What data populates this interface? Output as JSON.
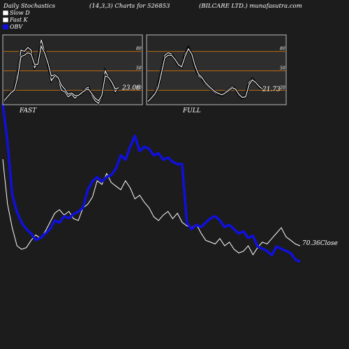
{
  "header": {
    "title_left": "Daily Stochastics",
    "title_params": "(14,3,3) Charts for 526853",
    "title_right": "(BILCARE LTD.) munafasutra.com"
  },
  "legend": [
    {
      "label": "Slow  D",
      "swatch": "#ffffff"
    },
    {
      "label": "Fast K",
      "swatch": "#ffffff"
    },
    {
      "label": "OBV",
      "swatch": "#1010dd"
    }
  ],
  "colors": {
    "background": "#1c1c1c",
    "panel_background": "#262626",
    "panel_border": "#bbbbbb",
    "level_line": "#b86a10",
    "obv": "#1010dd",
    "price": "#ffffff",
    "text": "#ffffff"
  },
  "chart_data": [
    {
      "type": "line",
      "panel": "FAST",
      "title": "FAST",
      "ylim": [
        0,
        100
      ],
      "levels": [
        20,
        50,
        80
      ],
      "level_labels": [
        "20",
        "50",
        "80"
      ],
      "value_label": "23.06",
      "series": [
        {
          "values": [
            6,
            12,
            18,
            22,
            48,
            82,
            80,
            86,
            82,
            55,
            62,
            98,
            80,
            60,
            35,
            42,
            38,
            20,
            18,
            10,
            14,
            8,
            12,
            14,
            22,
            25,
            12,
            4,
            0,
            10,
            50,
            40,
            30,
            18,
            25
          ]
        },
        {
          "values": [
            4,
            10,
            16,
            20,
            40,
            72,
            74,
            78,
            76,
            60,
            60,
            88,
            78,
            62,
            42,
            44,
            40,
            28,
            22,
            14,
            16,
            12,
            12,
            16,
            20,
            22,
            15,
            8,
            4,
            12,
            42,
            40,
            32,
            22,
            24
          ]
        }
      ]
    },
    {
      "type": "line",
      "panel": "FULL",
      "title": "FULL",
      "ylim": [
        0,
        100
      ],
      "levels": [
        20,
        50,
        80
      ],
      "level_labels": [
        "20",
        "50",
        "80"
      ],
      "value_label": "21.73",
      "series": [
        {
          "values": [
            4,
            10,
            16,
            28,
            52,
            74,
            78,
            76,
            68,
            58,
            56,
            76,
            86,
            75,
            55,
            42,
            38,
            30,
            25,
            20,
            16,
            14,
            12,
            18,
            22,
            26,
            22,
            12,
            8,
            12,
            32,
            38,
            32,
            25,
            22
          ]
        },
        {
          "values": [
            3,
            8,
            14,
            24,
            46,
            70,
            74,
            74,
            68,
            60,
            56,
            72,
            84,
            76,
            58,
            45,
            40,
            32,
            27,
            22,
            18,
            15,
            13,
            16,
            20,
            24,
            22,
            14,
            9,
            10,
            28,
            36,
            32,
            26,
            22
          ]
        }
      ]
    },
    {
      "type": "line",
      "panel": "main",
      "value_label": "70.36",
      "value_label_suffix": "Close",
      "series": [
        {
          "name": "OBV",
          "values": [
            100,
            82,
            58,
            50,
            45,
            42,
            40,
            37,
            38,
            40,
            42,
            46,
            45,
            48,
            47,
            49,
            50,
            52,
            60,
            64,
            66,
            64,
            66,
            67,
            70,
            76,
            74,
            80,
            85,
            78,
            80,
            79,
            76,
            77,
            74,
            75,
            73,
            72,
            72,
            45,
            42,
            44,
            43,
            45,
            47,
            48,
            46,
            43,
            44,
            42,
            40,
            41,
            38,
            39,
            34,
            33,
            32,
            30,
            34,
            33,
            32,
            31,
            28,
            27
          ]
        },
        {
          "name": "Close",
          "values": [
            60,
            35,
            22,
            12,
            10,
            11,
            15,
            18,
            16,
            20,
            25,
            30,
            32,
            29,
            31,
            27,
            26,
            33,
            35,
            39,
            48,
            46,
            52,
            47,
            45,
            43,
            48,
            44,
            38,
            40,
            36,
            33,
            28,
            26,
            29,
            31,
            27,
            30,
            25,
            23,
            22,
            24,
            19,
            15,
            14,
            13,
            16,
            12,
            14,
            10,
            8,
            9,
            12,
            7,
            11,
            14,
            13,
            16,
            19,
            22,
            17,
            15,
            13,
            12
          ]
        }
      ]
    }
  ]
}
